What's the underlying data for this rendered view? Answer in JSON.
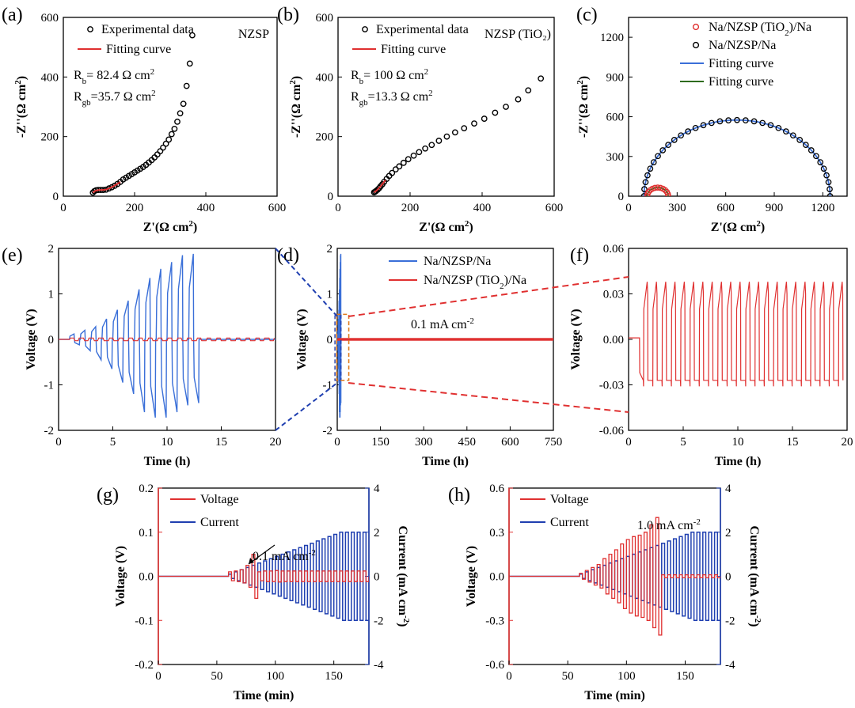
{
  "chart_data": [
    {
      "id": "a",
      "label": "(a)",
      "type": "scatter",
      "title": "NZSP",
      "xlabel": "Z'(Ω cm²)",
      "ylabel": "-Z''(Ω cm²)",
      "xlim": [
        0,
        600
      ],
      "ylim": [
        0,
        600
      ],
      "xticks": [
        0,
        200,
        400,
        600
      ],
      "yticks": [
        0,
        200,
        400,
        600
      ],
      "legend": [
        "Experimental data",
        "Fitting curve"
      ],
      "annotations": [
        "R_b= 82.4 Ω cm²",
        "R_gb=35.7 Ω cm²"
      ],
      "series": [
        {
          "name": "Experimental data",
          "style": "circle",
          "x": [
            83,
            87,
            92,
            98,
            105,
            112,
            120,
            128,
            136,
            144,
            152,
            160,
            168,
            176,
            184,
            192,
            200,
            208,
            216,
            224,
            232,
            240,
            248,
            256,
            264,
            272,
            280,
            288,
            296,
            304,
            312,
            320,
            328,
            337,
            346,
            355,
            362
          ],
          "y": [
            12,
            17,
            20,
            21,
            21,
            21,
            22,
            26,
            30,
            35,
            41,
            48,
            56,
            62,
            68,
            74,
            80,
            86,
            92,
            98,
            105,
            113,
            121,
            130,
            140,
            151,
            163,
            176,
            190,
            208,
            226,
            250,
            278,
            310,
            370,
            445,
            540
          ]
        },
        {
          "name": "Fitting curve",
          "style": "line",
          "color": "#e03030",
          "x": [
            83,
            90,
            100,
            110,
            120,
            130,
            140,
            150,
            160
          ],
          "y": [
            12,
            18,
            21,
            21,
            22,
            27,
            33,
            40,
            47
          ]
        }
      ]
    },
    {
      "id": "b",
      "label": "(b)",
      "type": "scatter",
      "title": "NZSP (TiO₂)",
      "xlabel": "Z'(Ω cm²)",
      "ylabel": "-Z''(Ω cm²)",
      "xlim": [
        0,
        600
      ],
      "ylim": [
        0,
        600
      ],
      "xticks": [
        0,
        200,
        400,
        600
      ],
      "yticks": [
        0,
        200,
        400,
        600
      ],
      "legend": [
        "Experimental data",
        "Fitting curve"
      ],
      "annotations": [
        "R_b= 100  Ω cm²",
        "R_gb=13.3 Ω cm²"
      ],
      "series": [
        {
          "name": "Experimental data",
          "style": "circle",
          "x": [
            100,
            103,
            106,
            110,
            114,
            118,
            123,
            128,
            135,
            142,
            150,
            160,
            170,
            182,
            195,
            210,
            225,
            242,
            260,
            280,
            302,
            325,
            350,
            378,
            406,
            436,
            466,
            500,
            528,
            563
          ],
          "y": [
            13,
            15,
            18,
            22,
            27,
            33,
            40,
            48,
            58,
            68,
            78,
            90,
            100,
            112,
            124,
            136,
            148,
            160,
            172,
            186,
            200,
            214,
            228,
            244,
            260,
            280,
            300,
            325,
            355,
            395
          ]
        },
        {
          "name": "Fitting curve",
          "style": "line",
          "color": "#e03030",
          "x": [
            100,
            104,
            108,
            112,
            116,
            120,
            124,
            128,
            132
          ],
          "y": [
            13,
            16,
            20,
            25,
            30,
            36,
            42,
            48,
            54
          ]
        }
      ]
    },
    {
      "id": "c",
      "label": "(c)",
      "type": "scatter",
      "xlabel": "Z'(Ω cm²)",
      "ylabel": "-Z''(Ω cm²)",
      "xlim": [
        0,
        1350
      ],
      "ylim": [
        0,
        1350
      ],
      "xticks": [
        0,
        300,
        600,
        900,
        1200
      ],
      "yticks": [
        0,
        300,
        600,
        900,
        1200
      ],
      "legend": [
        "Na/NZSP (TiO₂)/Na",
        "Na/NZSP/Na",
        "Fitting curve",
        "Fitting curve"
      ],
      "colors": [
        "#e03030",
        "#000000",
        "#3a6fd8",
        "#2e6b1e"
      ],
      "semicircles": [
        {
          "name": "Na/NZSP/Na",
          "center": 670,
          "radius": 575,
          "style": "circle"
        },
        {
          "name": "Na/NZSP (TiO₂)/Na",
          "center": 180,
          "radius": 65,
          "style": "circle"
        }
      ]
    },
    {
      "id": "e",
      "label": "(e)",
      "type": "line",
      "xlabel": "Time (h)",
      "ylabel": "Voltage (V)",
      "xlim": [
        0,
        20
      ],
      "ylim": [
        -2,
        2
      ],
      "xticks": [
        0,
        5,
        10,
        15,
        20
      ],
      "yticks": [
        -2,
        -1,
        0,
        1,
        2
      ],
      "series": [
        {
          "name": "Na/NZSP/Na",
          "color": "#3a6fd8",
          "cycles_start_h": [
            1.0,
            2.0,
            3.0,
            4.0,
            5.0,
            6.0,
            7.0,
            8.0,
            9.0,
            10.0,
            11.0,
            12.0
          ],
          "pos_peak": [
            0.12,
            0.2,
            0.28,
            0.45,
            0.65,
            0.85,
            1.1,
            1.35,
            1.55,
            1.7,
            1.85,
            1.88
          ],
          "neg_peak": [
            -0.12,
            -0.25,
            -0.45,
            -0.65,
            -0.95,
            -1.2,
            -1.6,
            -1.72,
            -1.72,
            -1.6,
            -1.45,
            -1.4
          ]
        },
        {
          "name": "Na/NZSP (TiO₂)/Na",
          "color": "#e03030",
          "amplitude": 0.03
        }
      ]
    },
    {
      "id": "d",
      "label": "(d)",
      "type": "line",
      "xlabel": "Time (h)",
      "ylabel": "Voltage (V)",
      "xlim": [
        0,
        750
      ],
      "ylim": [
        -2,
        2
      ],
      "xticks": [
        0,
        150,
        300,
        450,
        600,
        750
      ],
      "yticks": [
        -2,
        -1,
        0,
        1,
        2
      ],
      "legend": [
        "Na/NZSP/Na",
        "Na/NZSP (TiO₂)/Na"
      ],
      "annotation": "0.1 mA cm⁻²",
      "series": [
        {
          "name": "Na/NZSP/Na",
          "color": "#3a6fd8",
          "x_end": 13,
          "v_range": [
            -1.72,
            1.88
          ]
        },
        {
          "name": "Na/NZSP (TiO₂)/Na",
          "color": "#e03030",
          "x_end": 750,
          "v_range": [
            -0.03,
            0.03
          ]
        }
      ]
    },
    {
      "id": "f",
      "label": "(f)",
      "type": "line",
      "xlabel": "Time (h)",
      "ylabel": "Voltage (V)",
      "xlim": [
        0,
        20
      ],
      "ylim": [
        -0.06,
        0.06
      ],
      "xticks": [
        0,
        5,
        10,
        15,
        20
      ],
      "yticks": [
        -0.06,
        -0.03,
        0.0,
        0.03,
        0.06
      ],
      "series": [
        {
          "name": "Na/NZSP (TiO₂)/Na",
          "color": "#e03030",
          "cycle_period_h": 0.85,
          "start_h": 1.0,
          "pos_peak": 0.038,
          "neg_level": -0.027
        }
      ]
    },
    {
      "id": "g",
      "label": "(g)",
      "type": "line",
      "xlabel": "Time (min)",
      "ylabel": "Voltage (V)",
      "y2label": "Current (mA cm⁻²)",
      "xlim": [
        0,
        180
      ],
      "ylim": [
        -0.2,
        0.2
      ],
      "y2lim": [
        -4,
        4
      ],
      "xticks": [
        0,
        50,
        100,
        150
      ],
      "yticks": [
        -0.2,
        -0.1,
        0.0,
        0.1,
        0.2
      ],
      "y2ticks": [
        -4,
        -2,
        0,
        2,
        4
      ],
      "legend": [
        "Voltage",
        "Current"
      ],
      "annotation": "0.1 mA cm⁻²",
      "series": [
        {
          "name": "Current",
          "color": "#1f3fb0",
          "start_min": 60,
          "step_min": 5,
          "amplitudes": [
            0.1,
            0.2,
            0.3,
            0.4,
            0.5,
            0.6,
            0.7,
            0.8,
            0.9,
            1.0,
            1.1,
            1.2,
            1.3,
            1.4,
            1.5,
            1.6,
            1.7,
            1.8,
            1.9,
            2.0,
            2.0,
            2.0,
            2.0,
            2.0
          ]
        },
        {
          "name": "Voltage",
          "color": "#e03030",
          "start_min": 60,
          "step_min": 5,
          "amplitudes": [
            0.01,
            0.012,
            0.015,
            0.025,
            0.05,
            0.01,
            0.012,
            0.012,
            0.013,
            0.012,
            0.012,
            0.012,
            0.012,
            0.012,
            0.012,
            0.012,
            0.012,
            0.012,
            0.012,
            0.012,
            0.012,
            0.012,
            0.012,
            0.012
          ]
        }
      ]
    },
    {
      "id": "h",
      "label": "(h)",
      "type": "line",
      "xlabel": "Time (min)",
      "ylabel": "Voltage (V)",
      "y2label": "Current (mA cm⁻²)",
      "xlim": [
        0,
        180
      ],
      "ylim": [
        -0.6,
        0.6
      ],
      "y2lim": [
        -4,
        4
      ],
      "xticks": [
        0,
        50,
        100,
        150
      ],
      "yticks": [
        -0.6,
        -0.3,
        0.0,
        0.3,
        0.6
      ],
      "y2ticks": [
        -4,
        -2,
        0,
        2,
        4
      ],
      "legend": [
        "Voltage",
        "Current"
      ],
      "annotation": "1.0 mA cm⁻²",
      "series": [
        {
          "name": "Current",
          "color": "#1f3fb0",
          "start_min": 60,
          "step_min": 5,
          "amplitudes": [
            0.1,
            0.2,
            0.3,
            0.4,
            0.5,
            0.6,
            0.7,
            0.8,
            0.9,
            1.0,
            1.1,
            1.2,
            1.3,
            1.4,
            1.5,
            1.6,
            1.7,
            1.8,
            1.9,
            2.0,
            2.0,
            2.0,
            2.0,
            2.0
          ]
        },
        {
          "name": "Voltage",
          "color": "#e03030",
          "start_min": 60,
          "step_min": 5,
          "amplitudes": [
            0.02,
            0.04,
            0.06,
            0.08,
            0.12,
            0.15,
            0.18,
            0.22,
            0.25,
            0.27,
            0.28,
            0.3,
            0.35,
            0.4,
            0.01,
            0.01,
            0.01,
            0.01,
            0.01,
            0.01,
            0.01,
            0.01,
            0.01,
            0.01
          ]
        }
      ]
    }
  ]
}
